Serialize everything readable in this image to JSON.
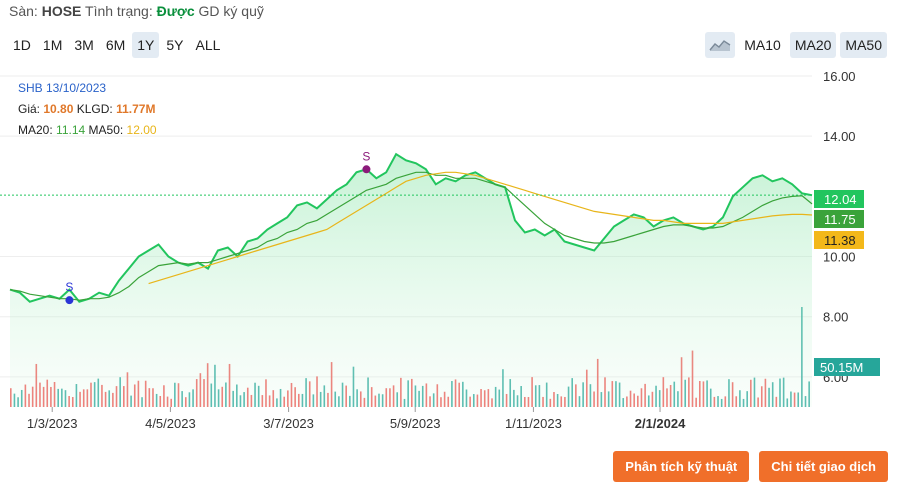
{
  "header": {
    "exchange_label": "Sàn:",
    "exchange_value": "HOSE",
    "status_label": "Tình trạng:",
    "status_value": "Được",
    "status_suffix": "GD ký quỹ"
  },
  "range_tabs": [
    {
      "label": "1D",
      "active": false
    },
    {
      "label": "1M",
      "active": false
    },
    {
      "label": "3M",
      "active": false
    },
    {
      "label": "6M",
      "active": false
    },
    {
      "label": "1Y",
      "active": true
    },
    {
      "label": "5Y",
      "active": false
    },
    {
      "label": "ALL",
      "active": false
    }
  ],
  "chart_type_icon": "area-chart-icon",
  "ma_tabs": [
    {
      "label": "MA10",
      "active": false
    },
    {
      "label": "MA20",
      "active": true
    },
    {
      "label": "MA50",
      "active": true
    }
  ],
  "info": {
    "symbol_date": "SHB 13/10/2023",
    "price_label": "Giá:",
    "price_value": "10.80",
    "volume_label": "KLGD:",
    "volume_value": "11.77M",
    "ma20_label": "MA20:",
    "ma20_value": "11.14",
    "ma50_label": "MA50:",
    "ma50_value": "12.00"
  },
  "actions": {
    "technical_analysis": "Phân tích kỹ thuật",
    "trade_details": "Chi tiết giao dịch"
  },
  "colors": {
    "price_line": "#22c55e",
    "ma20": "#3aa33a",
    "ma50": "#e8b51a",
    "volume_up": "#26a69a",
    "volume_down": "#ef5350",
    "button": "#f06f2a",
    "sell_marker_1": "#2a35d6",
    "sell_marker_2": "#8b1a7a"
  },
  "chart_data": {
    "type": "line",
    "symbol": "SHB",
    "ylim": [
      5.0,
      16.0
    ],
    "y_ticks": [
      "16.00",
      "14.00",
      "10.00",
      "8.00",
      "6.00"
    ],
    "x_ticks": [
      "1/3/2023",
      "4/5/2023",
      "3/7/2023",
      "5/9/2023",
      "1/11/2023",
      "2/1/2024"
    ],
    "x_tick_positions": [
      0.05,
      0.19,
      0.33,
      0.48,
      0.62,
      0.77
    ],
    "bold_x_tick_index": 5,
    "last_price": "12.04",
    "ma20_last": "11.75",
    "ma50_last": "11.38",
    "volume_last": "50.15M",
    "series": [
      {
        "name": "Giá",
        "values": [
          8.9,
          8.8,
          8.5,
          8.6,
          8.7,
          8.6,
          8.9,
          8.5,
          8.6,
          8.8,
          8.7,
          9.2,
          9.6,
          10.0,
          10.2,
          10.4,
          10.0,
          9.8,
          9.7,
          9.8,
          9.6,
          10.2,
          10.3,
          10.0,
          10.5,
          10.6,
          10.9,
          11.1,
          11.3,
          11.7,
          11.8,
          11.6,
          11.9,
          12.2,
          12.4,
          12.8,
          12.9,
          12.6,
          12.8,
          13.4,
          13.2,
          13.1,
          12.9,
          12.4,
          12.6,
          12.5,
          12.7,
          12.8,
          12.6,
          12.4,
          12.3,
          11.2,
          10.8,
          10.9,
          10.7,
          10.9,
          10.5,
          10.4,
          10.3,
          10.2,
          10.6,
          11.0,
          11.2,
          11.4,
          11.3,
          11.0,
          11.2,
          11.3,
          11.1,
          11.0,
          10.9,
          11.0,
          11.3,
          12.0,
          12.3,
          12.6,
          12.7,
          12.5,
          12.6,
          12.4,
          12.1,
          12.04
        ]
      },
      {
        "name": "MA20",
        "values": [
          8.9,
          8.85,
          8.75,
          8.7,
          8.65,
          8.6,
          8.6,
          8.55,
          8.6,
          8.6,
          8.65,
          8.8,
          9.0,
          9.3,
          9.5,
          9.7,
          9.75,
          9.8,
          9.75,
          9.8,
          9.8,
          9.9,
          10.0,
          10.1,
          10.2,
          10.3,
          10.5,
          10.6,
          10.8,
          10.9,
          11.1,
          11.2,
          11.4,
          11.6,
          11.8,
          12.0,
          12.2,
          12.3,
          12.4,
          12.6,
          12.7,
          12.8,
          12.8,
          12.7,
          12.7,
          12.6,
          12.6,
          12.6,
          12.5,
          12.4,
          12.3,
          12.0,
          11.7,
          11.4,
          11.1,
          10.9,
          10.7,
          10.6,
          10.5,
          10.45,
          10.45,
          10.5,
          10.6,
          10.7,
          10.8,
          10.9,
          11.0,
          11.05,
          11.05,
          11.0,
          10.95,
          10.95,
          11.0,
          11.15,
          11.3,
          11.5,
          11.7,
          11.85,
          11.95,
          12.0,
          12.02,
          11.75
        ]
      },
      {
        "name": "MA50",
        "values": [
          null,
          null,
          null,
          null,
          null,
          null,
          null,
          null,
          null,
          null,
          null,
          null,
          null,
          null,
          9.1,
          9.2,
          9.3,
          9.4,
          9.5,
          9.6,
          9.7,
          9.8,
          9.9,
          10.0,
          10.1,
          10.2,
          10.3,
          10.4,
          10.5,
          10.6,
          10.7,
          10.8,
          10.9,
          11.1,
          11.3,
          11.5,
          11.7,
          11.9,
          12.1,
          12.3,
          12.5,
          12.6,
          12.7,
          12.75,
          12.8,
          12.8,
          12.75,
          12.7,
          12.6,
          12.5,
          12.4,
          12.3,
          12.2,
          12.1,
          12.0,
          11.9,
          11.8,
          11.7,
          11.6,
          11.5,
          11.45,
          11.4,
          11.35,
          11.3,
          11.25,
          11.2,
          11.2,
          11.15,
          11.1,
          11.1,
          11.1,
          11.1,
          11.1,
          11.15,
          11.2,
          11.25,
          11.3,
          11.35,
          11.38,
          11.4,
          11.4,
          11.38
        ]
      }
    ],
    "volume_max_millions": 120
  }
}
